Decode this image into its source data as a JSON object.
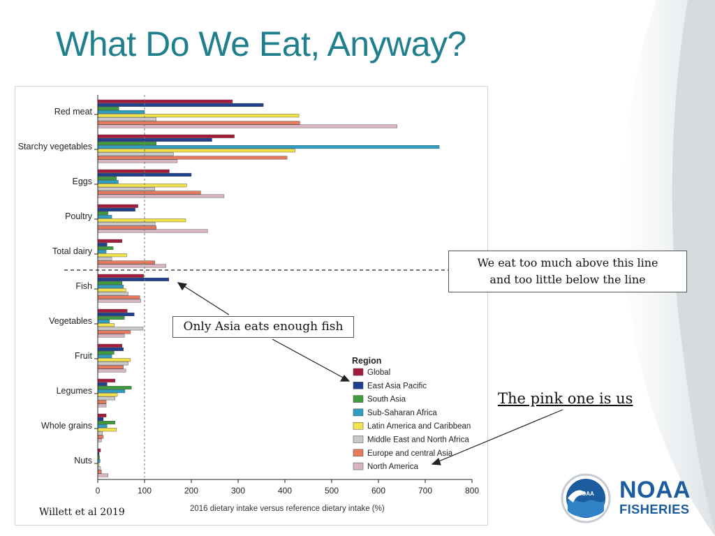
{
  "slide": {
    "title": "What Do We Eat, Anyway?",
    "citation": "Willett et al 2019",
    "callout_line": [
      "We eat too much above this line",
      "and too little below the line"
    ],
    "callout_fish": "Only Asia eats enough fish",
    "pink_note": "The pink one is us",
    "logo": {
      "line1": "NOAA",
      "line2": "FISHERIES",
      "seal_text": "NOAA",
      "brand_color": "#1b5c9f"
    }
  },
  "colors": {
    "title": "#1f7f8c",
    "series": [
      "#a51c3a",
      "#1f3f8f",
      "#3f9d3f",
      "#2e9fc0",
      "#f2e24d",
      "#c9c9c9",
      "#e67a5e",
      "#d8b4c0"
    ]
  },
  "chart_data": {
    "type": "bar",
    "orientation": "horizontal",
    "xlabel": "2016 dietary intake versus reference dietary intake (%)",
    "xlim": [
      0,
      800
    ],
    "xticks": [
      0,
      100,
      200,
      300,
      400,
      500,
      600,
      700,
      800
    ],
    "reference_line": 100,
    "legend_title": "Region",
    "categories": [
      "Red meat",
      "Starchy vegetables",
      "Eggs",
      "Poultry",
      "Total dairy",
      "Fish",
      "Vegetables",
      "Fruit",
      "Legumes",
      "Whole grains",
      "Nuts"
    ],
    "series": [
      {
        "name": "Global",
        "values": [
          288,
          292,
          153,
          86,
          52,
          98,
          63,
          52,
          37,
          18,
          6
        ]
      },
      {
        "name": "East Asia Pacific",
        "values": [
          354,
          244,
          200,
          80,
          20,
          152,
          78,
          55,
          20,
          12,
          3
        ]
      },
      {
        "name": "South Asia",
        "values": [
          45,
          125,
          40,
          22,
          33,
          52,
          57,
          35,
          72,
          37,
          4
        ]
      },
      {
        "name": "Sub-Saharan Africa",
        "values": [
          100,
          730,
          44,
          30,
          18,
          55,
          25,
          30,
          58,
          20,
          5
        ]
      },
      {
        "name": "Latin America and Caribbean",
        "values": [
          430,
          422,
          190,
          188,
          62,
          60,
          35,
          70,
          42,
          40,
          3
        ]
      },
      {
        "name": "Middle East and North Africa",
        "values": [
          125,
          162,
          122,
          123,
          30,
          65,
          97,
          65,
          37,
          10,
          6
        ]
      },
      {
        "name": "Europe and central Asia",
        "values": [
          432,
          405,
          220,
          125,
          122,
          90,
          70,
          55,
          18,
          12,
          8
        ]
      },
      {
        "name": "North America",
        "values": [
          640,
          170,
          270,
          235,
          146,
          92,
          57,
          60,
          18,
          8,
          22
        ]
      }
    ]
  }
}
